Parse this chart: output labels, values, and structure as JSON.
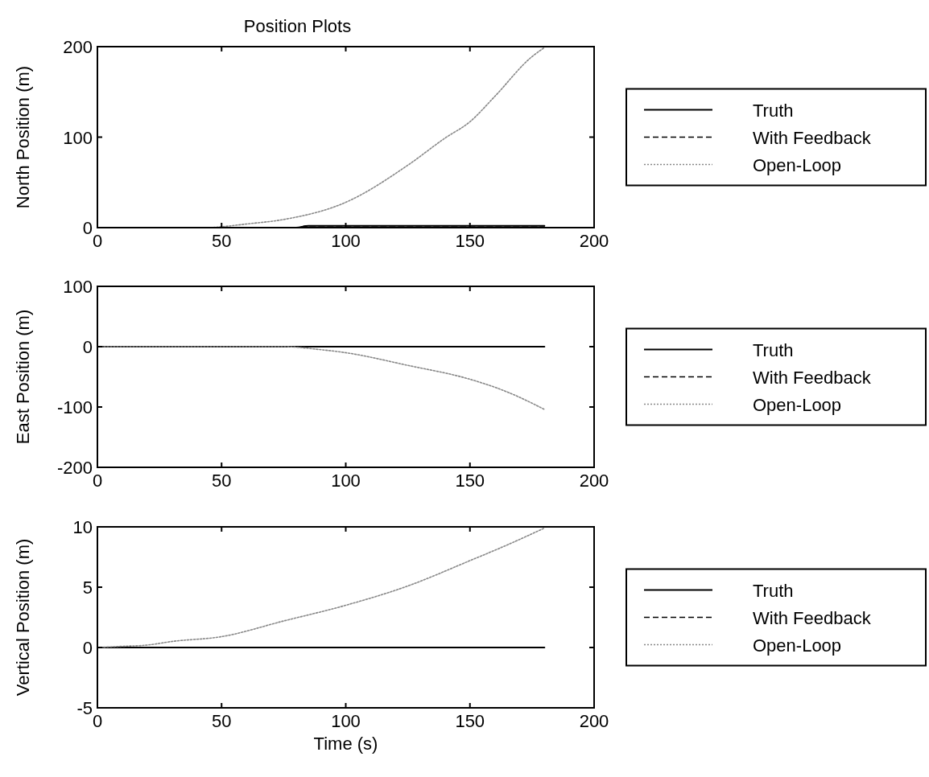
{
  "chart_data": [
    {
      "type": "line",
      "title": "Position Plots",
      "ylabel": "North Position (m)",
      "xlim": [
        0,
        200
      ],
      "xticks": [
        0,
        50,
        100,
        150,
        200
      ],
      "ylim": [
        0,
        200
      ],
      "yticks": [
        0,
        100,
        200
      ],
      "legend": "right",
      "grid": false,
      "series": [
        {
          "name": "Truth",
          "color": "#000000",
          "line_style": "solid",
          "x": [
            0,
            80,
            85,
            180
          ],
          "values": [
            0,
            0,
            2,
            2
          ]
        },
        {
          "name": "With Feedback",
          "color": "#000000",
          "line_style": "dashed",
          "x": [
            0,
            80,
            85,
            180
          ],
          "values": [
            0,
            0,
            2,
            2
          ]
        },
        {
          "name": "Open-Loop",
          "color": "#888888",
          "line_style": "dotted",
          "x": [
            0,
            45,
            50,
            60,
            75,
            100,
            125,
            140,
            150,
            160,
            175,
            180
          ],
          "values": [
            0,
            0,
            1,
            4,
            9,
            28,
            69,
            99,
            117,
            145,
            189,
            199
          ]
        }
      ]
    },
    {
      "type": "line",
      "ylabel": "East Position (m)",
      "xlim": [
        0,
        200
      ],
      "xticks": [
        0,
        50,
        100,
        150,
        200
      ],
      "ylim": [
        -200,
        100
      ],
      "yticks": [
        -200,
        -100,
        0,
        100
      ],
      "legend": "right",
      "grid": false,
      "series": [
        {
          "name": "Truth",
          "color": "#000000",
          "line_style": "solid",
          "x": [
            0,
            180
          ],
          "values": [
            0,
            0
          ]
        },
        {
          "name": "With Feedback",
          "color": "#000000",
          "line_style": "dashed"
        },
        {
          "name": "Open-Loop",
          "color": "#888888",
          "line_style": "dotted",
          "x": [
            0,
            50,
            75,
            90,
            100,
            125,
            150,
            165,
            180
          ],
          "values": [
            0,
            0,
            0,
            -5,
            -10,
            -31,
            -54,
            -75,
            -104
          ]
        }
      ]
    },
    {
      "type": "line",
      "ylabel": "Vertical Position (m)",
      "xlabel": "Time (s)",
      "xlim": [
        0,
        200
      ],
      "xticks": [
        0,
        50,
        100,
        150,
        200
      ],
      "ylim": [
        -5,
        10
      ],
      "yticks": [
        -5,
        0,
        5,
        10
      ],
      "legend": "right",
      "grid": false,
      "series": [
        {
          "name": "Truth",
          "color": "#000000",
          "line_style": "solid",
          "x": [
            0,
            180
          ],
          "values": [
            0,
            0
          ]
        },
        {
          "name": "With Feedback",
          "color": "#000000",
          "line_style": "dashed"
        },
        {
          "name": "Open-Loop",
          "color": "#888888",
          "line_style": "dotted",
          "x": [
            0,
            10,
            20,
            30,
            50,
            75,
            100,
            125,
            150,
            165,
            180
          ],
          "values": [
            0,
            0.1,
            0.2,
            0.5,
            0.9,
            2.2,
            3.5,
            5.1,
            7.2,
            8.5,
            9.9
          ]
        }
      ]
    }
  ]
}
